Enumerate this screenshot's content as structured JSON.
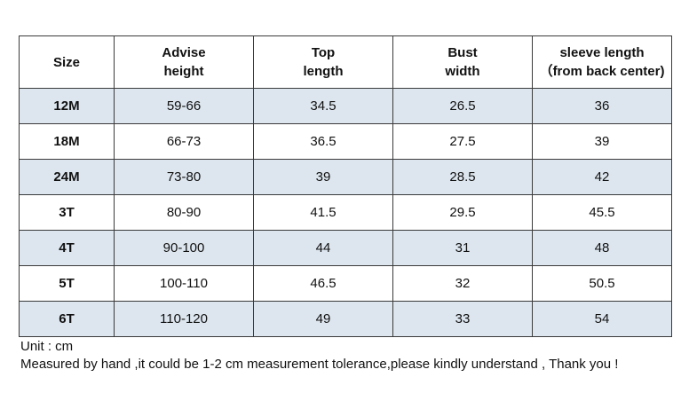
{
  "table": {
    "headers": [
      {
        "lines": [
          "Size"
        ]
      },
      {
        "lines": [
          "Advise",
          "height"
        ]
      },
      {
        "lines": [
          "Top",
          "length"
        ]
      },
      {
        "lines": [
          "Bust",
          "width"
        ]
      },
      {
        "lines": [
          "sleeve length",
          "（from back center)"
        ]
      }
    ],
    "rows": [
      {
        "size": "12M",
        "height": "59-66",
        "top_length": "34.5",
        "bust_width": "26.5",
        "sleeve_length": "36"
      },
      {
        "size": "18M",
        "height": "66-73",
        "top_length": "36.5",
        "bust_width": "27.5",
        "sleeve_length": "39"
      },
      {
        "size": "24M",
        "height": "73-80",
        "top_length": "39",
        "bust_width": "28.5",
        "sleeve_length": "42"
      },
      {
        "size": "3T",
        "height": "80-90",
        "top_length": "41.5",
        "bust_width": "29.5",
        "sleeve_length": "45.5"
      },
      {
        "size": "4T",
        "height": "90-100",
        "top_length": "44",
        "bust_width": "31",
        "sleeve_length": "48"
      },
      {
        "size": "5T",
        "height": "100-110",
        "top_length": "46.5",
        "bust_width": "32",
        "sleeve_length": "50.5"
      },
      {
        "size": "6T",
        "height": "110-120",
        "top_length": "49",
        "bust_width": "33",
        "sleeve_length": "54"
      }
    ]
  },
  "notes": {
    "unit": "Unit : cm",
    "measurement": "Measured by hand ,it could be 1-2 cm measurement tolerance,please kindly understand , Thank you !"
  },
  "colors": {
    "shaded_row": "#dde6ef",
    "border": "#3a3a3a"
  }
}
